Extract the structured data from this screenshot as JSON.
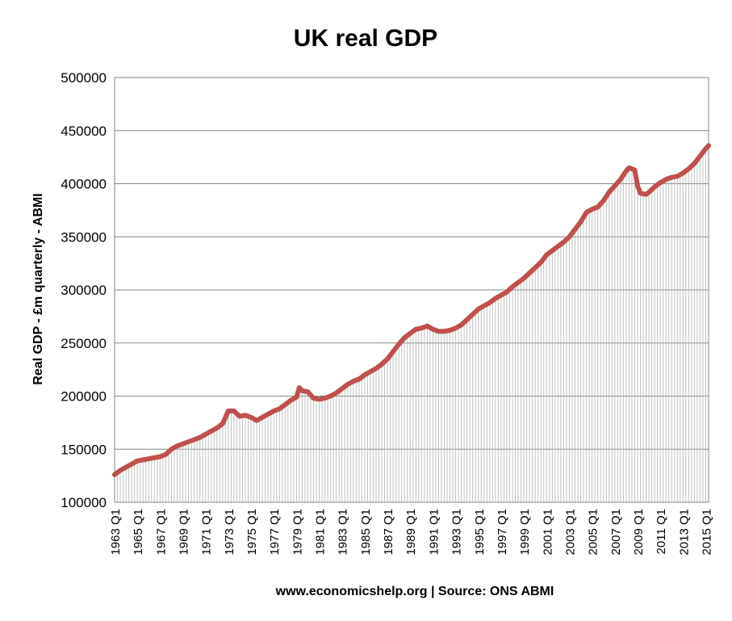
{
  "chart_data": {
    "type": "line",
    "title": "UK real GDP",
    "xlabel": "www.economicshelp.org | Source: ONS ABMI",
    "ylabel": "Real GDP - £m quarterly  - ABMI",
    "ylim": [
      100000,
      500000
    ],
    "yticks": [
      "100000",
      "150000",
      "200000",
      "250000",
      "300000",
      "350000",
      "400000",
      "450000",
      "500000"
    ],
    "xticks": [
      "1963 Q1",
      "1965 Q1",
      "1967 Q1",
      "1969 Q1",
      "1971 Q1",
      "1973 Q1",
      "1975 Q1",
      "1977 Q1",
      "1979 Q1",
      "1981 Q1",
      "1983 Q1",
      "1985 Q1",
      "1987 Q1",
      "1989 Q1",
      "1991 Q1",
      "1993 Q1",
      "1995 Q1",
      "1997 Q1",
      "1999 Q1",
      "2001 Q1",
      "2003 Q1",
      "2005 Q1",
      "2007 Q1",
      "2009 Q1",
      "2011 Q1",
      "2013 Q1",
      "2015 Q1"
    ],
    "grid": true,
    "x_start": "1963 Q1",
    "x_end": "2015 Q1",
    "line_color": "#c0504d",
    "drop_line_color": "#bfbfbf",
    "series": [
      {
        "name": "",
        "points": [
          [
            "1963 Q1",
            126000
          ],
          [
            "1963 Q3",
            130000
          ],
          [
            "1964 Q1",
            133000
          ],
          [
            "1964 Q3",
            136000
          ],
          [
            "1965 Q1",
            139000
          ],
          [
            "1965 Q3",
            140000
          ],
          [
            "1966 Q1",
            141000
          ],
          [
            "1966 Q3",
            142000
          ],
          [
            "1967 Q1",
            143000
          ],
          [
            "1967 Q3",
            145000
          ],
          [
            "1968 Q1",
            150000
          ],
          [
            "1968 Q3",
            153000
          ],
          [
            "1969 Q1",
            155000
          ],
          [
            "1969 Q3",
            157000
          ],
          [
            "1970 Q1",
            159000
          ],
          [
            "1970 Q3",
            161000
          ],
          [
            "1971 Q1",
            164000
          ],
          [
            "1971 Q3",
            167000
          ],
          [
            "1972 Q1",
            170000
          ],
          [
            "1972 Q3",
            174000
          ],
          [
            "1973 Q1",
            186000
          ],
          [
            "1973 Q3",
            186000
          ],
          [
            "1974 Q1",
            181000
          ],
          [
            "1974 Q3",
            182000
          ],
          [
            "1975 Q1",
            180000
          ],
          [
            "1975 Q3",
            177000
          ],
          [
            "1976 Q1",
            180000
          ],
          [
            "1976 Q3",
            183000
          ],
          [
            "1977 Q1",
            186000
          ],
          [
            "1977 Q3",
            188000
          ],
          [
            "1978 Q1",
            192000
          ],
          [
            "1978 Q3",
            196000
          ],
          [
            "1979 Q1",
            199000
          ],
          [
            "1979 Q2",
            208000
          ],
          [
            "1979 Q3",
            205000
          ],
          [
            "1980 Q1",
            204000
          ],
          [
            "1980 Q3",
            198000
          ],
          [
            "1981 Q1",
            197000
          ],
          [
            "1981 Q3",
            198000
          ],
          [
            "1982 Q1",
            200000
          ],
          [
            "1982 Q3",
            203000
          ],
          [
            "1983 Q1",
            207000
          ],
          [
            "1983 Q3",
            211000
          ],
          [
            "1984 Q1",
            214000
          ],
          [
            "1984 Q3",
            216000
          ],
          [
            "1985 Q1",
            220000
          ],
          [
            "1985 Q3",
            223000
          ],
          [
            "1986 Q1",
            226000
          ],
          [
            "1986 Q3",
            230000
          ],
          [
            "1987 Q1",
            235000
          ],
          [
            "1987 Q3",
            242000
          ],
          [
            "1988 Q1",
            249000
          ],
          [
            "1988 Q3",
            255000
          ],
          [
            "1989 Q1",
            259000
          ],
          [
            "1989 Q3",
            263000
          ],
          [
            "1990 Q1",
            264000
          ],
          [
            "1990 Q3",
            266000
          ],
          [
            "1991 Q1",
            263000
          ],
          [
            "1991 Q3",
            261000
          ],
          [
            "1992 Q1",
            261000
          ],
          [
            "1992 Q3",
            262000
          ],
          [
            "1993 Q1",
            264000
          ],
          [
            "1993 Q3",
            267000
          ],
          [
            "1994 Q1",
            272000
          ],
          [
            "1994 Q3",
            277000
          ],
          [
            "1995 Q1",
            282000
          ],
          [
            "1995 Q3",
            285000
          ],
          [
            "1996 Q1",
            288000
          ],
          [
            "1996 Q3",
            292000
          ],
          [
            "1997 Q1",
            295000
          ],
          [
            "1997 Q3",
            298000
          ],
          [
            "1998 Q1",
            303000
          ],
          [
            "1998 Q3",
            307000
          ],
          [
            "1999 Q1",
            311000
          ],
          [
            "1999 Q3",
            316000
          ],
          [
            "2000 Q1",
            321000
          ],
          [
            "2000 Q3",
            326000
          ],
          [
            "2001 Q1",
            333000
          ],
          [
            "2001 Q3",
            337000
          ],
          [
            "2002 Q1",
            341000
          ],
          [
            "2002 Q3",
            345000
          ],
          [
            "2003 Q1",
            350000
          ],
          [
            "2003 Q3",
            357000
          ],
          [
            "2004 Q1",
            364000
          ],
          [
            "2004 Q3",
            373000
          ],
          [
            "2005 Q1",
            376000
          ],
          [
            "2005 Q3",
            378000
          ],
          [
            "2006 Q1",
            384000
          ],
          [
            "2006 Q3",
            392000
          ],
          [
            "2007 Q1",
            398000
          ],
          [
            "2007 Q3",
            404000
          ],
          [
            "2008 Q1",
            412000
          ],
          [
            "2008 Q2",
            415000
          ],
          [
            "2008 Q4",
            413000
          ],
          [
            "2009 Q1",
            398000
          ],
          [
            "2009 Q2",
            391000
          ],
          [
            "2009 Q4",
            390000
          ],
          [
            "2010 Q1",
            392000
          ],
          [
            "2010 Q3",
            397000
          ],
          [
            "2011 Q1",
            401000
          ],
          [
            "2011 Q3",
            404000
          ],
          [
            "2012 Q1",
            406000
          ],
          [
            "2012 Q3",
            407000
          ],
          [
            "2013 Q1",
            410000
          ],
          [
            "2013 Q3",
            414000
          ],
          [
            "2014 Q1",
            419000
          ],
          [
            "2014 Q3",
            426000
          ],
          [
            "2015 Q1",
            433000
          ],
          [
            "2015 Q2",
            436000
          ]
        ]
      }
    ]
  }
}
